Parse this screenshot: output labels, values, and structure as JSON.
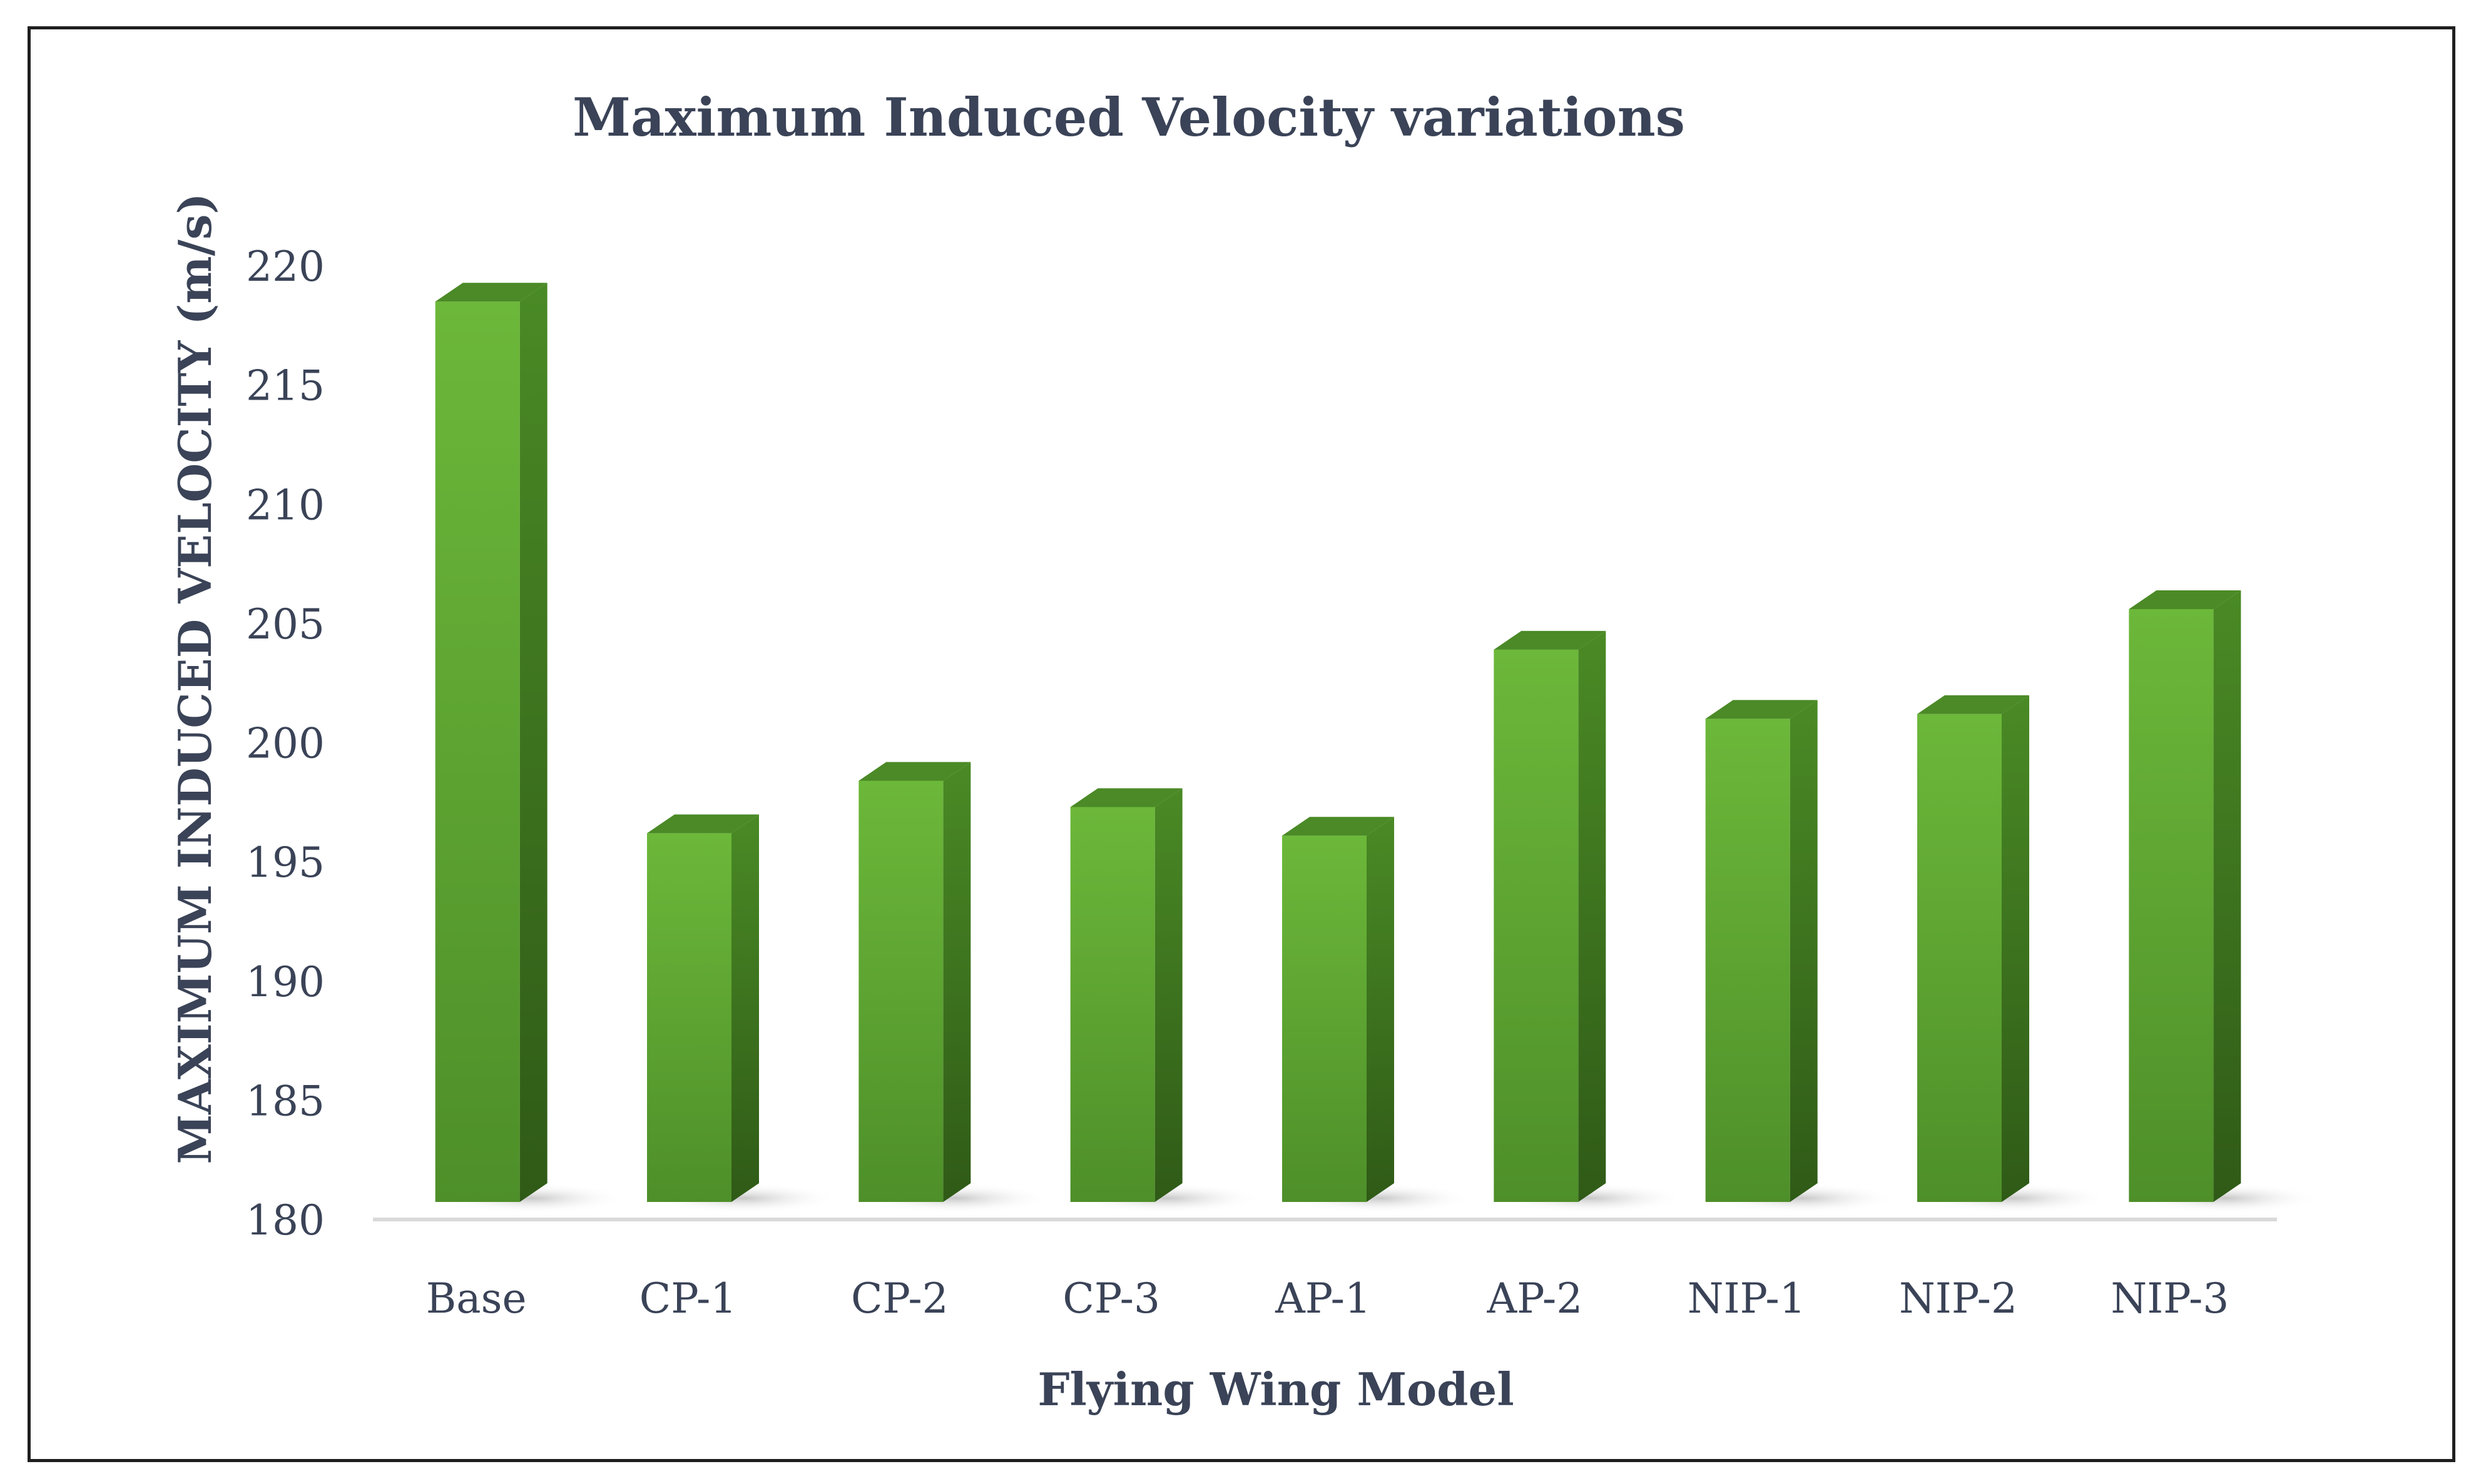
{
  "chart_data": {
    "type": "bar",
    "style": "3d-column",
    "title": "Maximum Induced Velocity variations",
    "xlabel": "Flying Wing Model",
    "ylabel": "MAXIMUM INDUCED VELOCITY (m/s)",
    "categories": [
      "Base",
      "CP-1",
      "CP-2",
      "CP-3",
      "AP-1",
      "AP-2",
      "NIP-1",
      "NIP-2",
      "NIP-3"
    ],
    "values": [
      218.5,
      196.2,
      198.4,
      197.3,
      196.1,
      203.9,
      201.0,
      201.2,
      205.6
    ],
    "ylim": [
      180,
      220
    ],
    "yticks": [
      180,
      185,
      190,
      195,
      200,
      205,
      210,
      215,
      220
    ],
    "grid": false,
    "legend": "none"
  },
  "colors": {
    "bar_front": "#5fa532",
    "bar_side": "#3f7520",
    "bar_top": "#4b8a27",
    "text": "#3a4357",
    "axis": "#d9d9d9"
  }
}
